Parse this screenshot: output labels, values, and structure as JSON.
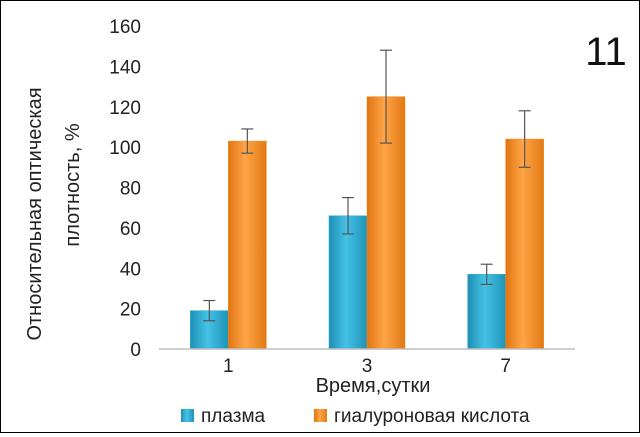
{
  "chart_data": {
    "type": "bar",
    "panel_label": "11",
    "categories": [
      "1",
      "3",
      "7"
    ],
    "series": [
      {
        "name": "плазма",
        "values": [
          19,
          66,
          37
        ],
        "errors": [
          5,
          9,
          5
        ],
        "color": "#2eaed3"
      },
      {
        "name": "гиалуроновая кислота",
        "values": [
          103,
          125,
          104
        ],
        "errors": [
          6,
          23,
          14
        ],
        "color": "#f48a1e"
      }
    ],
    "xlabel": "Время,сутки",
    "ylabel_lines": [
      "Относительная  оптическая",
      "плотность, %"
    ],
    "ylim": [
      0,
      160
    ],
    "yticks": [
      "0",
      "20",
      "40",
      "60",
      "80",
      "100",
      "120",
      "140",
      "160"
    ],
    "grid": false,
    "legend_position": "bottom"
  }
}
